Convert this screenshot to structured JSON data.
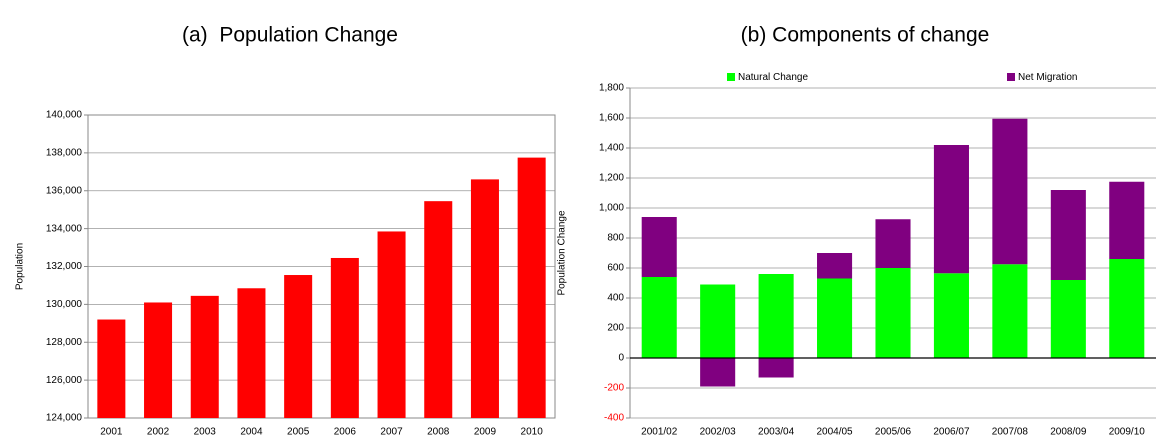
{
  "chart_data": [
    {
      "type": "bar",
      "title": "(a)  Population Change",
      "y_label": "Population",
      "categories": [
        "2001",
        "2002",
        "2003",
        "2004",
        "2005",
        "2006",
        "2007",
        "2008",
        "2009",
        "2010"
      ],
      "values": [
        129200,
        130100,
        130450,
        130850,
        131550,
        132450,
        133850,
        135450,
        136600,
        137750
      ],
      "color": "#ff0000",
      "ylim": [
        124000,
        140000
      ],
      "yticks": [
        {
          "value": 124000,
          "label": "124,000"
        },
        {
          "value": 126000,
          "label": "126,000"
        },
        {
          "value": 128000,
          "label": "128,000"
        },
        {
          "value": 130000,
          "label": "130,000"
        },
        {
          "value": 132000,
          "label": "132,000"
        },
        {
          "value": 134000,
          "label": "134,000"
        },
        {
          "value": 136000,
          "label": "136,000"
        },
        {
          "value": 138000,
          "label": "138,000"
        },
        {
          "value": 140000,
          "label": "140,000"
        }
      ],
      "grid": true
    },
    {
      "type": "stacked_bar",
      "title": "(b) Components of change",
      "y_label": "Population Change",
      "categories": [
        "2001/02",
        "2002/03",
        "2003/04",
        "2004/05",
        "2005/06",
        "2006/07",
        "2007/08",
        "2008/09",
        "2009/10"
      ],
      "series": [
        {
          "name": "Natural Change",
          "color": "#00ff00",
          "values": [
            540,
            490,
            560,
            530,
            600,
            565,
            625,
            520,
            660
          ]
        },
        {
          "name": "Net Migration",
          "color": "#800080",
          "values": [
            400,
            -190,
            -130,
            170,
            325,
            855,
            970,
            600,
            515
          ]
        }
      ],
      "ylim": [
        -400,
        1800
      ],
      "yticks": [
        -400,
        -200,
        0,
        200,
        400,
        600,
        800,
        {
          "value": 1000,
          "label": "1,000"
        },
        {
          "value": 1200,
          "label": "1,200"
        },
        {
          "value": 1400,
          "label": "1,400"
        },
        {
          "value": 1600,
          "label": "1,600"
        },
        {
          "value": 1800,
          "label": "1,800"
        }
      ],
      "grid": true,
      "legend": "top",
      "negative_tick_color": "#ff0000"
    }
  ]
}
